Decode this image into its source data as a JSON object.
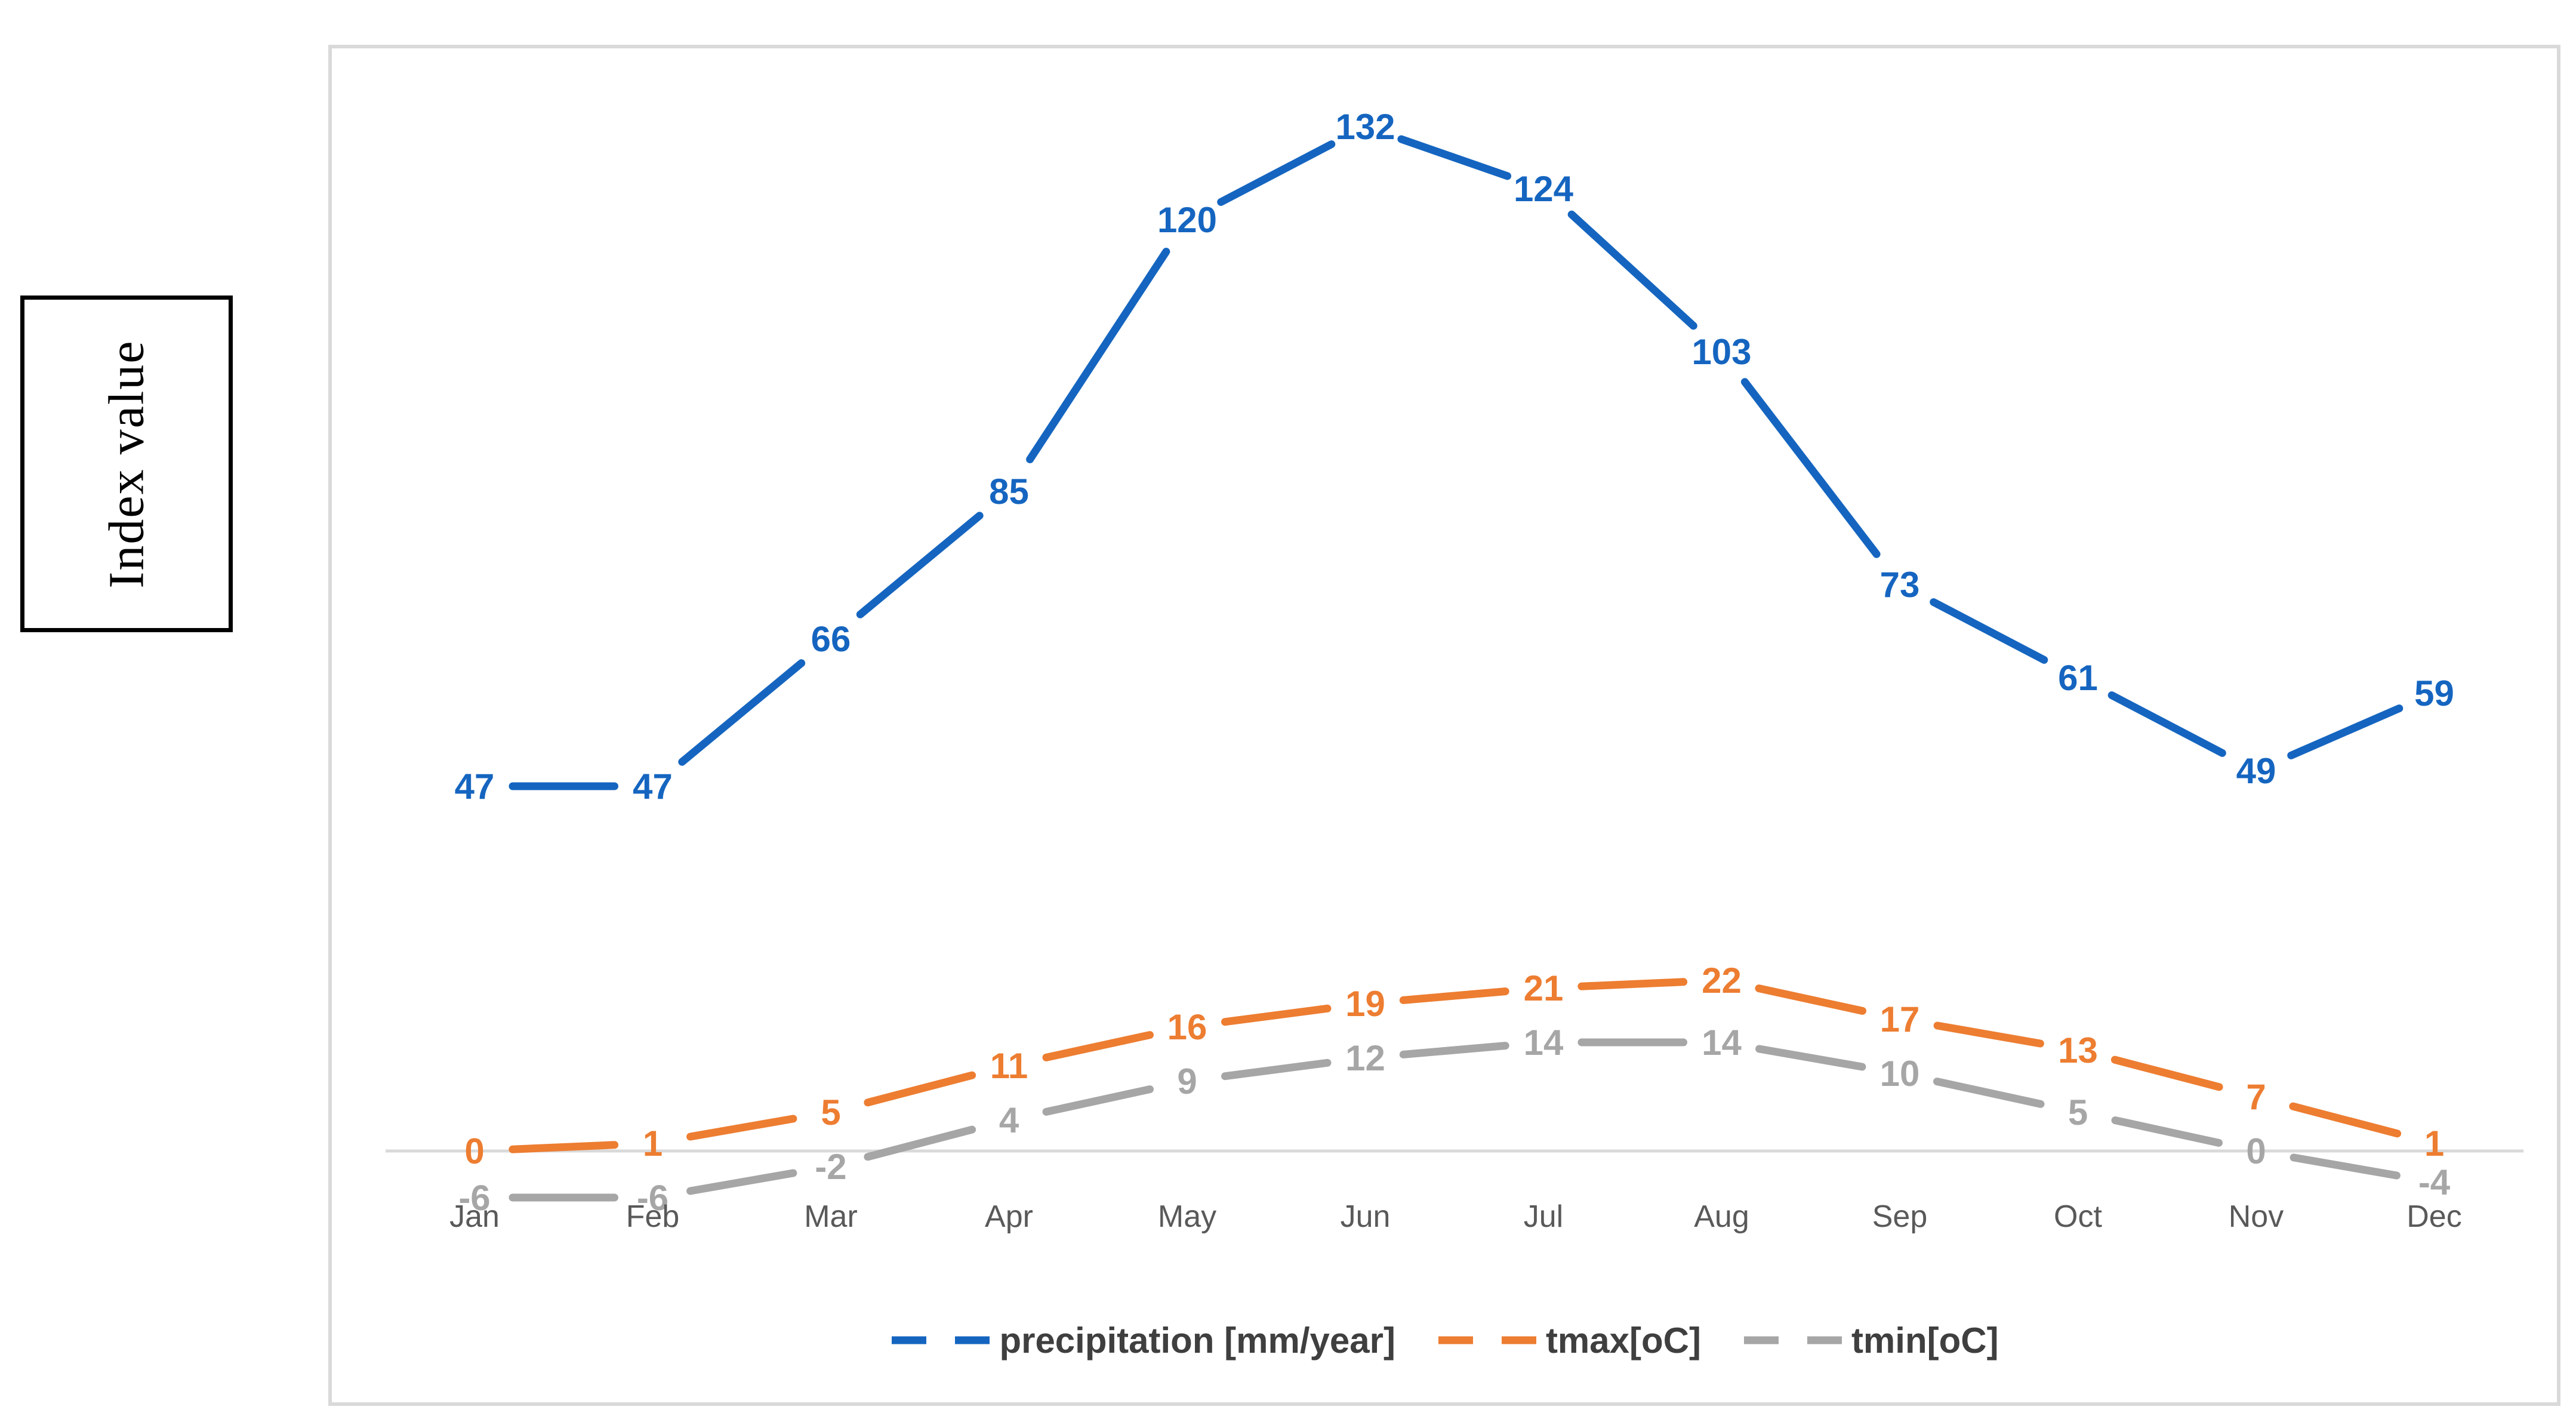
{
  "chart_data": {
    "type": "line",
    "line_style": "dashed",
    "ylabel": "Index value",
    "xlabel": "",
    "categories": [
      "Jan",
      "Feb",
      "Mar",
      "Apr",
      "May",
      "Jun",
      "Jul",
      "Aug",
      "Sep",
      "Oct",
      "Nov",
      "Dec"
    ],
    "series": [
      {
        "name": "precipitation [mm/year]",
        "color": "#1565C0",
        "values": [
          47,
          47,
          66,
          85,
          120,
          132,
          124,
          103,
          73,
          61,
          49,
          59
        ]
      },
      {
        "name": "tmax[oC]",
        "color": "#ED7D31",
        "values": [
          0,
          1,
          5,
          11,
          16,
          19,
          21,
          22,
          17,
          13,
          7,
          1
        ]
      },
      {
        "name": "tmin[oC]",
        "color": "#A6A6A6",
        "values": [
          -6,
          -6,
          -2,
          4,
          9,
          12,
          14,
          14,
          10,
          5,
          0,
          -4
        ]
      }
    ],
    "data_labels": "shown at every point, colored per series, bold",
    "legend_position": "bottom",
    "grid": "none",
    "zero_axis_line": true,
    "axis_line_color": "#D9D9D9",
    "tick_label_color": "#595959",
    "legend_text_color": "#3F3F3F",
    "chart_border_color": "#D9D9D9",
    "ylabel_box_border_color": "#000000",
    "background_color": "#FFFFFF"
  }
}
